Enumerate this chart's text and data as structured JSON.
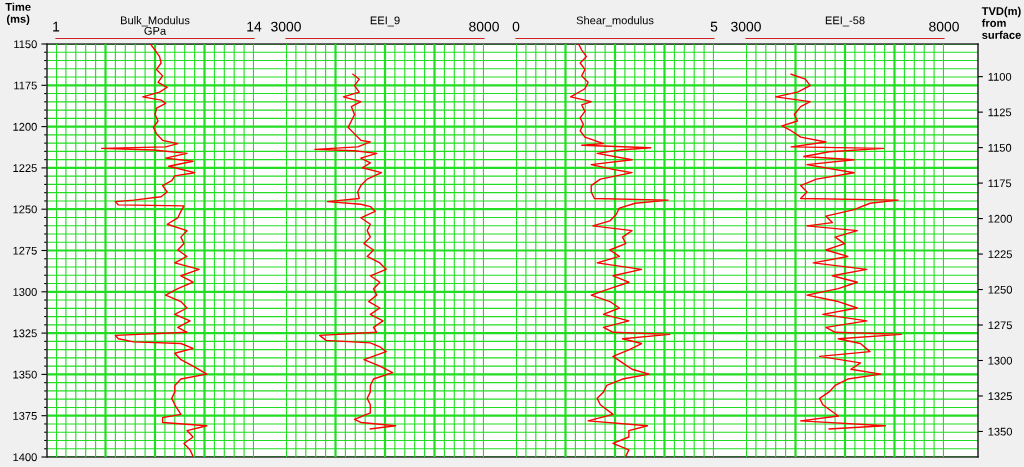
{
  "chart_data": [
    {
      "type": "line",
      "title": "Bulk_Modulus",
      "xlabel": "GPa",
      "ylabel": "Time\n(ms)",
      "grid": true,
      "xlim": [
        1,
        14
      ],
      "xticks": [
        1,
        {
          "value": 1.65,
          "label": null
        },
        {
          "value": 2.3,
          "label": null
        },
        {
          "value": 2.95,
          "label": null
        },
        {
          "value": 3.6,
          "label": null
        },
        {
          "value": 4.25,
          "label": null
        },
        {
          "value": 4.9,
          "label": null
        },
        {
          "value": 5.55,
          "label": null
        },
        {
          "value": 6.2,
          "label": null
        },
        {
          "value": 6.85,
          "label": null
        },
        {
          "value": 7.5,
          "label": null
        },
        {
          "value": 8.15,
          "label": null
        },
        {
          "value": 8.8,
          "label": null
        },
        {
          "value": 9.45,
          "label": null
        },
        {
          "value": 10.1,
          "label": null
        },
        {
          "value": 10.75,
          "label": null
        },
        {
          "value": 11.4,
          "label": null
        },
        {
          "value": 12.05,
          "label": null
        },
        {
          "value": 12.7,
          "label": null
        },
        {
          "value": 13.35,
          "label": null
        },
        14
      ],
      "ylim": [
        1400,
        1150
      ],
      "yticks": [
        1150,
        {
          "value": 1155,
          "label": null
        },
        {
          "value": 1160,
          "label": null
        },
        {
          "value": 1165,
          "label": null
        },
        {
          "value": 1170,
          "label": null
        },
        1175,
        {
          "value": 1180,
          "label": null
        },
        {
          "value": 1185,
          "label": null
        },
        {
          "value": 1190,
          "label": null
        },
        {
          "value": 1195,
          "label": null
        },
        1200,
        {
          "value": 1205,
          "label": null
        },
        {
          "value": 1210,
          "label": null
        },
        {
          "value": 1215,
          "label": null
        },
        {
          "value": 1220,
          "label": null
        },
        1225,
        {
          "value": 1230,
          "label": null
        },
        {
          "value": 1235,
          "label": null
        },
        {
          "value": 1240,
          "label": null
        },
        {
          "value": 1245,
          "label": null
        },
        1250,
        {
          "value": 1255,
          "label": null
        },
        {
          "value": 1260,
          "label": null
        },
        {
          "value": 1265,
          "label": null
        },
        {
          "value": 1270,
          "label": null
        },
        1275,
        {
          "value": 1280,
          "label": null
        },
        {
          "value": 1285,
          "label": null
        },
        {
          "value": 1290,
          "label": null
        },
        {
          "value": 1295,
          "label": null
        },
        1300,
        {
          "value": 1305,
          "label": null
        },
        {
          "value": 1310,
          "label": null
        },
        {
          "value": 1315,
          "label": null
        },
        {
          "value": 1320,
          "label": null
        },
        1325,
        {
          "value": 1330,
          "label": null
        },
        {
          "value": 1335,
          "label": null
        },
        {
          "value": 1340,
          "label": null
        },
        {
          "value": 1345,
          "label": null
        },
        1350,
        {
          "value": 1355,
          "label": null
        },
        {
          "value": 1360,
          "label": null
        },
        {
          "value": 1365,
          "label": null
        },
        {
          "value": 1370,
          "label": null
        },
        1375,
        {
          "value": 1380,
          "label": null
        },
        {
          "value": 1385,
          "label": null
        },
        {
          "value": 1390,
          "label": null
        },
        {
          "value": 1395,
          "label": null
        },
        1400
      ],
      "series": [
        {
          "color": "#ff0000",
          "x": [
            7.2,
            7.5,
            7.8,
            7.9,
            7.6,
            8.0,
            7.7,
            8.3,
            7.8,
            6.7,
            7.9,
            8.2,
            7.6,
            7.5,
            7.7,
            7.4,
            7.6,
            8.0,
            9.0,
            8.2,
            4.0,
            7.4,
            9.6,
            8.2,
            10.0,
            8.4,
            10.1,
            8.8,
            8.6,
            8.0,
            8.3,
            7.9,
            6.1,
            4.9,
            5.1,
            9.4,
            9.2,
            9.0,
            8.3,
            9.6,
            9.2,
            9.4,
            9.0,
            9.6,
            8.8,
            10.4,
            9.2,
            10.0,
            9.0,
            8.2,
            9.2,
            9.6,
            8.8,
            9.8,
            9.0,
            9.6,
            4.9,
            5.1,
            6.1,
            9.2,
            10.0,
            8.8,
            9.2,
            10.0,
            10.9,
            9.2,
            8.8,
            8.8,
            8.6,
            8.8,
            9.2,
            8.0,
            8.0,
            10.9,
            9.6,
            10.0,
            9.4,
            9.8,
            10.0
          ],
          "values": [
            1150,
            1153.7,
            1157.6,
            1161.5,
            1165.4,
            1169.3,
            1173.2,
            1176.2,
            1179.1,
            1182,
            1184,
            1185.9,
            1188.8,
            1192.7,
            1196.6,
            1200.5,
            1204.4,
            1208.3,
            1210.3,
            1212.3,
            1213.2,
            1214.2,
            1216.2,
            1219.1,
            1221,
            1224,
            1227.9,
            1229.8,
            1232.7,
            1235.7,
            1239.6,
            1242.5,
            1244.5,
            1245.4,
            1247.4,
            1248,
            1251.3,
            1255.2,
            1259.1,
            1263,
            1266.9,
            1270.8,
            1274.7,
            1278.6,
            1282.5,
            1286.4,
            1290.3,
            1294.2,
            1298.1,
            1302,
            1305.9,
            1309.8,
            1313.7,
            1317.6,
            1321.5,
            1324.5,
            1326.4,
            1328.4,
            1330.3,
            1331.3,
            1334.2,
            1337.2,
            1341.1,
            1345,
            1349.8,
            1352.8,
            1356.7,
            1360.6,
            1364.5,
            1368.4,
            1374.2,
            1376.2,
            1379.1,
            1381.1,
            1384,
            1387.9,
            1391.8,
            1395.7,
            1399.6
          ]
        }
      ]
    },
    {
      "type": "line",
      "title": "EEI_9",
      "grid": true,
      "tick_labels": "x",
      "xlim": [
        3000,
        8000
      ],
      "xticks": [
        3000,
        {
          "value": 3250,
          "label": null
        },
        {
          "value": 3500,
          "label": null
        },
        {
          "value": 3750,
          "label": null
        },
        {
          "value": 4000,
          "label": null
        },
        {
          "value": 4250,
          "label": null
        },
        {
          "value": 4500,
          "label": null
        },
        {
          "value": 4750,
          "label": null
        },
        {
          "value": 5000,
          "label": null
        },
        {
          "value": 5250,
          "label": null
        },
        {
          "value": 5500,
          "label": null
        },
        {
          "value": 5750,
          "label": null
        },
        {
          "value": 6000,
          "label": null
        },
        {
          "value": 6250,
          "label": null
        },
        {
          "value": 6500,
          "label": null
        },
        {
          "value": 6750,
          "label": null
        },
        {
          "value": 7000,
          "label": null
        },
        {
          "value": 7250,
          "label": null
        },
        {
          "value": 7500,
          "label": null
        },
        {
          "value": 7750,
          "label": null
        },
        8000
      ],
      "ylim": [
        1400,
        1150
      ],
      "series": [
        {
          "color": "#ff0000",
          "x": [
            4690,
            4850,
            4730,
            4850,
            4450,
            4890,
            4650,
            4730,
            4650,
            4570,
            4730,
            4890,
            5130,
            4810,
            3730,
            4730,
            5290,
            4890,
            5130,
            4930,
            5410,
            5050,
            4890,
            4810,
            4850,
            4050,
            4890,
            5130,
            5250,
            4890,
            5130,
            5050,
            5130,
            4970,
            5210,
            5050,
            5370,
            5530,
            5130,
            5370,
            5210,
            5290,
            5090,
            5370,
            5130,
            5450,
            5210,
            5290,
            3850,
            4010,
            5130,
            5370,
            5530,
            4970,
            5370,
            5690,
            5210,
            5130,
            5130,
            5050,
            5130,
            5130,
            4730,
            4890,
            5770,
            5130
          ],
          "values": [
            1168.3,
            1171.3,
            1175.2,
            1179.1,
            1182,
            1184.9,
            1187.9,
            1192.7,
            1196.6,
            1200.5,
            1204.4,
            1208.3,
            1209.3,
            1212.3,
            1213.8,
            1214.6,
            1216.2,
            1219.1,
            1222,
            1224.9,
            1227.9,
            1231.8,
            1235.7,
            1239.6,
            1243.5,
            1245.4,
            1247,
            1248.4,
            1251.3,
            1255.2,
            1259.1,
            1263,
            1266.9,
            1270.8,
            1274.7,
            1278.6,
            1282.5,
            1286.4,
            1290.3,
            1294.2,
            1298.1,
            1302,
            1305.9,
            1309.8,
            1313.7,
            1317.6,
            1321.5,
            1324.5,
            1326.4,
            1329.4,
            1330.9,
            1333.3,
            1336.2,
            1341.1,
            1345,
            1348.9,
            1352.8,
            1356.7,
            1360.6,
            1364.5,
            1368.4,
            1373.3,
            1377.2,
            1379.1,
            1381.1,
            1383
          ]
        }
      ]
    },
    {
      "type": "line",
      "title": "Shear_modulus",
      "grid": true,
      "tick_labels": "x",
      "xlim": [
        0,
        5
      ],
      "xticks": [
        0,
        {
          "value": 0.25,
          "label": null
        },
        {
          "value": 0.5,
          "label": null
        },
        {
          "value": 0.75,
          "label": null
        },
        {
          "value": 1,
          "label": null
        },
        {
          "value": 1.25,
          "label": null
        },
        {
          "value": 1.5,
          "label": null
        },
        {
          "value": 1.75,
          "label": null
        },
        {
          "value": 2,
          "label": null
        },
        {
          "value": 2.25,
          "label": null
        },
        {
          "value": 2.5,
          "label": null
        },
        {
          "value": 2.75,
          "label": null
        },
        {
          "value": 3,
          "label": null
        },
        {
          "value": 3.25,
          "label": null
        },
        {
          "value": 3.5,
          "label": null
        },
        {
          "value": 3.75,
          "label": null
        },
        {
          "value": 4,
          "label": null
        },
        {
          "value": 4.25,
          "label": null
        },
        {
          "value": 4.5,
          "label": null
        },
        {
          "value": 4.75,
          "label": null
        },
        5
      ],
      "ylim": [
        1400,
        1150
      ],
      "series": [
        {
          "color": "#ff0000",
          "x": [
            1.58,
            1.66,
            1.78,
            1.62,
            1.74,
            1.66,
            1.82,
            1.74,
            1.38,
            1.9,
            1.66,
            1.74,
            1.62,
            1.7,
            1.62,
            1.74,
            2.21,
            1.66,
            3.4,
            2.61,
            2.05,
            2.93,
            1.9,
            2.45,
            2.93,
            2.13,
            1.9,
            1.9,
            1.98,
            3.84,
            3.01,
            2.61,
            2.53,
            2.37,
            1.94,
            2.93,
            2.69,
            2.77,
            2.37,
            2.61,
            2.05,
            3.17,
            2.45,
            2.85,
            2.37,
            1.9,
            2.37,
            2.61,
            2.21,
            2.85,
            2.21,
            2.45,
            3.88,
            2.69,
            3.17,
            2.85,
            2.45,
            2.69,
            2.93,
            3.36,
            2.69,
            2.29,
            2.21,
            2.05,
            2.13,
            2.45,
            1.82,
            3.32,
            2.85,
            2.85,
            2.45,
            2.85,
            2.77
          ],
          "values": [
            1150,
            1153.7,
            1157.6,
            1161.5,
            1165.4,
            1169.3,
            1173.2,
            1177.1,
            1182,
            1184.9,
            1186.9,
            1190.8,
            1194.7,
            1198.6,
            1202.5,
            1206.4,
            1210.3,
            1211.3,
            1212.8,
            1214.2,
            1216.2,
            1220.1,
            1223,
            1225.9,
            1227.9,
            1231.8,
            1235.7,
            1239.6,
            1243.5,
            1244.5,
            1246.4,
            1249.3,
            1253.2,
            1257.1,
            1260.1,
            1263,
            1266.9,
            1270.8,
            1274.7,
            1278.6,
            1282.5,
            1286.4,
            1290.3,
            1294.2,
            1298.1,
            1302,
            1305.9,
            1309.8,
            1313.7,
            1317.6,
            1321.5,
            1324.5,
            1325.8,
            1328.4,
            1331.3,
            1335.2,
            1339.1,
            1343,
            1346.9,
            1349.8,
            1352.8,
            1356.7,
            1360.6,
            1364.5,
            1368.4,
            1374.2,
            1378.1,
            1381.1,
            1384,
            1387.9,
            1391.8,
            1395.7,
            1399.6
          ]
        }
      ]
    },
    {
      "type": "line",
      "title": "EEI_-58",
      "grid": true,
      "y2label": "TVD(m)\nfrom\nsurface",
      "xlim": [
        3000,
        8000
      ],
      "xticks": [
        3000,
        {
          "value": 3250,
          "label": null
        },
        {
          "value": 3500,
          "label": null
        },
        {
          "value": 3750,
          "label": null
        },
        {
          "value": 4000,
          "label": null
        },
        {
          "value": 4250,
          "label": null
        },
        {
          "value": 4500,
          "label": null
        },
        {
          "value": 4750,
          "label": null
        },
        {
          "value": 5000,
          "label": null
        },
        {
          "value": 5250,
          "label": null
        },
        {
          "value": 5500,
          "label": null
        },
        {
          "value": 5750,
          "label": null
        },
        {
          "value": 6000,
          "label": null
        },
        {
          "value": 6250,
          "label": null
        },
        {
          "value": 6500,
          "label": null
        },
        {
          "value": 6750,
          "label": null
        },
        {
          "value": 7000,
          "label": null
        },
        {
          "value": 7250,
          "label": null
        },
        {
          "value": 7500,
          "label": null
        },
        {
          "value": 7750,
          "label": null
        },
        8000
      ],
      "ylim": [
        1400,
        1150
      ],
      "y2lim": [
        1368,
        1077
      ],
      "y2ticks": [
        1100,
        1125,
        1150,
        1175,
        1200,
        1225,
        1250,
        1275,
        1300,
        1325,
        1350
      ],
      "series": [
        {
          "color": "#ff0000",
          "x": [
            4140,
            4500,
            4620,
            4300,
            3750,
            4620,
            4380,
            4220,
            4300,
            3910,
            4140,
            4380,
            5020,
            4140,
            6480,
            5100,
            4460,
            5730,
            4540,
            5730,
            4780,
            4380,
            4540,
            4380,
            6840,
            6130,
            5730,
            5020,
            5180,
            4540,
            5810,
            5250,
            5490,
            5020,
            5570,
            4700,
            6050,
            5180,
            5810,
            5330,
            4540,
            5330,
            5810,
            4940,
            6050,
            5020,
            5250,
            6920,
            5330,
            5890,
            6130,
            4860,
            5890,
            5650,
            6400,
            5570,
            5250,
            5100,
            4860,
            4940,
            5330,
            4380,
            6520,
            5100
          ],
          "values": [
            1168.3,
            1171.3,
            1175.2,
            1179.1,
            1182,
            1184.9,
            1187.9,
            1192.7,
            1196.6,
            1199.6,
            1202.5,
            1206.4,
            1209.3,
            1212.3,
            1213.2,
            1215.2,
            1218.1,
            1220.1,
            1223,
            1227.9,
            1231.8,
            1235.7,
            1239.6,
            1243.5,
            1244.5,
            1246.4,
            1250.3,
            1254.2,
            1258.1,
            1260.1,
            1263,
            1266.9,
            1270.8,
            1274.7,
            1278.6,
            1282.5,
            1286.4,
            1290.3,
            1294.2,
            1298.1,
            1302,
            1305.9,
            1309.8,
            1313.7,
            1317.6,
            1321.5,
            1324.5,
            1325.8,
            1328.4,
            1331.3,
            1336.2,
            1339.1,
            1343,
            1346.9,
            1349.8,
            1352.8,
            1356.7,
            1360.6,
            1364.5,
            1368.4,
            1375.2,
            1378.1,
            1381.1,
            1383
          ]
        }
      ]
    }
  ]
}
